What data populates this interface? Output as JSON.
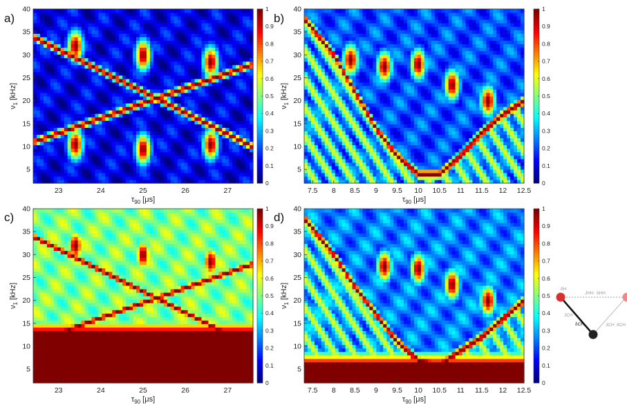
{
  "chart_data": [
    {
      "type": "heatmap",
      "panel": "a)",
      "xlabel": "τ90 [μs]",
      "ylabel": "ν1 [kHz]",
      "xlim": [
        22.4,
        27.6
      ],
      "ylim": [
        2,
        40
      ],
      "xticks": [
        23,
        24,
        25,
        26,
        27
      ],
      "yticks": [
        5,
        10,
        15,
        20,
        25,
        30,
        35,
        40
      ],
      "colorbar": {
        "min": 0,
        "max": 1,
        "ticks": [
          0,
          0.1,
          0.2,
          0.3,
          0.4,
          0.5,
          0.6,
          0.7,
          0.8,
          0.9,
          1
        ],
        "colormap": "jet"
      },
      "background_level": 0.1,
      "features": [
        {
          "kind": "line",
          "from": [
            22.4,
            34
          ],
          "to": [
            27.6,
            10
          ],
          "value": 1
        },
        {
          "kind": "line",
          "from": [
            22.4,
            11
          ],
          "to": [
            27.6,
            28
          ],
          "value": 1
        },
        {
          "kind": "blob",
          "x": 25.0,
          "y": 9.5,
          "value": 1
        },
        {
          "kind": "blob",
          "x": 23.4,
          "y": 10.5,
          "value": 1
        },
        {
          "kind": "blob",
          "x": 26.6,
          "y": 10.5,
          "value": 1
        },
        {
          "kind": "blob",
          "x": 25.0,
          "y": 30,
          "value": 1
        },
        {
          "kind": "blob",
          "x": 23.4,
          "y": 32,
          "value": 1
        },
        {
          "kind": "blob",
          "x": 26.6,
          "y": 28.5,
          "value": 1
        }
      ]
    },
    {
      "type": "heatmap",
      "panel": "b)",
      "xlabel": "τ90 [μs]",
      "ylabel": "ν1 [kHz]",
      "xlim": [
        7.3,
        12.5
      ],
      "ylim": [
        2,
        40
      ],
      "xticks": [
        "7.5",
        "8",
        "8.5",
        "9",
        "9.5",
        "10",
        "10.5",
        "11",
        "11.5",
        "12",
        "12.5"
      ],
      "yticks": [
        5,
        10,
        15,
        20,
        25,
        30,
        35,
        40
      ],
      "colorbar": {
        "min": 0,
        "max": 1,
        "ticks": [
          0,
          0.1,
          0.2,
          0.3,
          0.4,
          0.5,
          0.6,
          0.7,
          0.8,
          0.9,
          1
        ],
        "colormap": "jet"
      },
      "background_level": 0.2,
      "features": [
        {
          "kind": "curve",
          "points": [
            [
              7.3,
              38
            ],
            [
              8.0,
              30
            ],
            [
              8.5,
              22
            ],
            [
              9.0,
              14
            ],
            [
              9.5,
              8
            ],
            [
              10.0,
              4
            ],
            [
              10.5,
              4
            ],
            [
              11.0,
              8
            ],
            [
              11.5,
              13
            ],
            [
              12.0,
              17
            ],
            [
              12.5,
              20
            ]
          ],
          "value": 1
        },
        {
          "kind": "blob",
          "x": 8.4,
          "y": 29,
          "value": 1
        },
        {
          "kind": "blob",
          "x": 10.0,
          "y": 28,
          "value": 1
        },
        {
          "kind": "blob",
          "x": 11.65,
          "y": 20,
          "value": 1
        },
        {
          "kind": "blob",
          "x": 9.2,
          "y": 27.5,
          "value": 1
        },
        {
          "kind": "blob",
          "x": 10.8,
          "y": 23.5,
          "value": 1
        }
      ]
    },
    {
      "type": "heatmap",
      "panel": "c)",
      "xlabel": "τ90 [μs]",
      "ylabel": "ν1 [kHz]",
      "xlim": [
        22.4,
        27.6
      ],
      "ylim": [
        2,
        40
      ],
      "xticks": [
        23,
        24,
        25,
        26,
        27
      ],
      "yticks": [
        5,
        10,
        15,
        20,
        25,
        30,
        35,
        40
      ],
      "colorbar": {
        "min": 0,
        "max": 1,
        "ticks": [
          0,
          0.1,
          0.2,
          0.3,
          0.4,
          0.5,
          0.6,
          0.7,
          0.8,
          0.9,
          1
        ],
        "colormap": "jet"
      },
      "background_level": 0.5,
      "features": [
        {
          "kind": "line",
          "from": [
            22.4,
            34
          ],
          "to": [
            27.6,
            10
          ],
          "value": 1
        },
        {
          "kind": "line",
          "from": [
            22.4,
            11
          ],
          "to": [
            27.6,
            28
          ],
          "value": 1
        },
        {
          "kind": "band",
          "y_from": 2,
          "y_to": 12,
          "value": 1
        },
        {
          "kind": "blob",
          "x": 25.0,
          "y": 30,
          "value": 1
        },
        {
          "kind": "blob",
          "x": 23.4,
          "y": 32,
          "value": 1
        },
        {
          "kind": "blob",
          "x": 26.6,
          "y": 28.5,
          "value": 1
        }
      ]
    },
    {
      "type": "heatmap",
      "panel": "d)",
      "xlabel": "τ90 [μs]",
      "ylabel": "ν1 [kHz]",
      "xlim": [
        7.3,
        12.5
      ],
      "ylim": [
        2,
        40
      ],
      "xticks": [
        "7.5",
        "8",
        "8.5",
        "9",
        "9.5",
        "10",
        "10.5",
        "11",
        "11.5",
        "12",
        "12.5"
      ],
      "yticks": [
        5,
        10,
        15,
        20,
        25,
        30,
        35,
        40
      ],
      "colorbar": {
        "min": 0,
        "max": 1,
        "ticks": [
          0,
          0.1,
          0.2,
          0.3,
          0.4,
          0.5,
          0.6,
          0.7,
          0.8,
          0.9,
          1
        ],
        "colormap": "jet"
      },
      "background_level": 0.25,
      "features": [
        {
          "kind": "curve",
          "points": [
            [
              7.3,
              38
            ],
            [
              8.0,
              30
            ],
            [
              8.5,
              23
            ],
            [
              9.0,
              17
            ],
            [
              9.5,
              11
            ],
            [
              10.0,
              7
            ],
            [
              10.5,
              6
            ],
            [
              11.0,
              9
            ],
            [
              11.5,
              12
            ],
            [
              12.0,
              16
            ],
            [
              12.5,
              20
            ]
          ],
          "value": 1
        },
        {
          "kind": "band",
          "y_from": 2,
          "y_to": 5,
          "value": 1
        },
        {
          "kind": "blob",
          "x": 10.0,
          "y": 27,
          "value": 1
        },
        {
          "kind": "blob",
          "x": 9.2,
          "y": 27.5,
          "value": 1
        },
        {
          "kind": "blob",
          "x": 10.8,
          "y": 23.5,
          "value": 1
        },
        {
          "kind": "blob",
          "x": 11.65,
          "y": 20,
          "value": 1
        }
      ]
    }
  ],
  "inset": {
    "atoms": [
      {
        "name": "proton-a",
        "color": "#d93030"
      },
      {
        "name": "carbon",
        "color": "#222222"
      },
      {
        "name": "proton-b",
        "color": "#f08888"
      }
    ],
    "labels": [
      "δH",
      "JHH",
      "δHH",
      "JCH",
      "δCH",
      "JCH",
      "δCH"
    ]
  }
}
